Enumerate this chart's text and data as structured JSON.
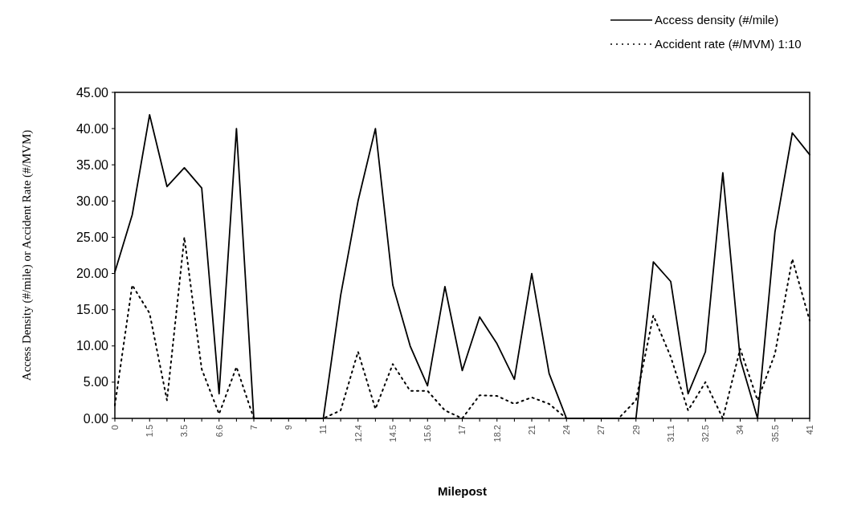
{
  "chart_data": {
    "type": "line",
    "xlabel": "Milepost",
    "ylabel": "Access Density (#/mile) or Accident Rate (#/MVM)",
    "categories": [
      "0",
      null,
      "1.5",
      null,
      "3.5",
      null,
      "6.6",
      null,
      "7",
      null,
      "9",
      null,
      "11",
      null,
      "12.4",
      null,
      "14.5",
      null,
      "15.6",
      null,
      "17",
      null,
      "18.2",
      null,
      "21",
      null,
      "24",
      null,
      "27",
      null,
      "29",
      null,
      "31.1",
      null,
      "32.5",
      null,
      "34",
      null,
      "35.5",
      null,
      "41"
    ],
    "series": [
      {
        "name": "Access density (#/mile)",
        "color": "#000000",
        "line_style": "solid",
        "values": [
          20.2,
          28.1,
          41.9,
          32.0,
          34.6,
          31.8,
          3.4,
          40.0,
          0,
          0,
          0,
          0,
          0,
          17,
          30,
          40.0,
          18.4,
          10.0,
          4.5,
          18.2,
          6.6,
          14.0,
          10.3,
          5.4,
          20.0,
          6.2,
          0,
          0,
          0,
          0,
          0,
          21.6,
          18.9,
          3.4,
          9.2,
          33.9,
          8.2,
          0,
          25.7,
          39.4,
          36.4
        ]
      },
      {
        "name": "Accident rate (#/MVM) 1:10",
        "color": "#000000",
        "line_style": "dotted",
        "values": [
          1.8,
          18.4,
          14.5,
          2.5,
          25.0,
          6.8,
          0.6,
          7.1,
          0,
          0,
          0,
          0,
          0,
          1.1,
          9.2,
          1.3,
          7.5,
          3.8,
          3.8,
          1.1,
          0,
          3.2,
          3.1,
          2.0,
          2.9,
          2.0,
          0,
          0,
          0,
          0,
          2.5,
          14.2,
          8.5,
          1.1,
          5.0,
          0,
          9.6,
          2.5,
          8.9,
          22.0,
          13.5
        ]
      }
    ],
    "ylim": [
      0,
      45
    ],
    "yticks": [
      {
        "value": 0,
        "label": "0.00"
      },
      {
        "value": 5,
        "label": "5.00"
      },
      {
        "value": 10,
        "label": "10.00"
      },
      {
        "value": 15,
        "label": "15.00"
      },
      {
        "value": 20,
        "label": "20.00"
      },
      {
        "value": 25,
        "label": "25.00"
      },
      {
        "value": 30,
        "label": "30.00"
      },
      {
        "value": 35,
        "label": "35.00"
      },
      {
        "value": 40,
        "label": "40.00"
      },
      {
        "value": 45,
        "label": "45.00"
      }
    ],
    "grid": false,
    "legend": "top right",
    "marker": "none"
  }
}
